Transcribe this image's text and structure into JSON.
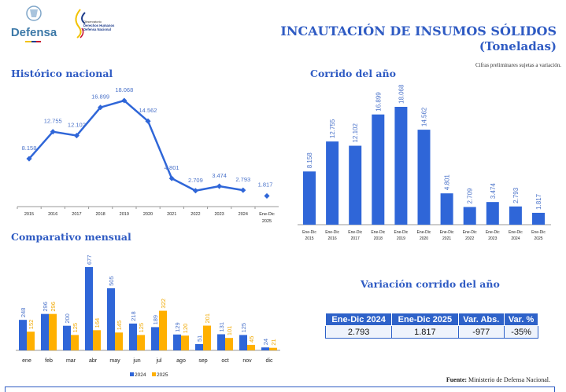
{
  "header": {
    "logo_defensa_text": "Defensa",
    "logo_observatorio_text": [
      "Observatorio",
      "Derechos Humanos",
      "Defensa Nacional"
    ],
    "title": "INCAUTACIÓN DE INSUMOS SÓLIDOS",
    "subtitle": "(Toneladas)",
    "note": "Cifras preliminares sujetas a variación."
  },
  "colors": {
    "title": "#2F5BC3",
    "series_2024": "#2F66D8",
    "series_2025": "#FFB000",
    "label_blue": "#4A72C9"
  },
  "sections": {
    "historico": "Histórico nacional",
    "corrido": "Corrido del año",
    "mensual": "Comparativo mensual",
    "variacion": "Variación corrido del año"
  },
  "chart_data": [
    {
      "type": "line",
      "categories": [
        "2015",
        "2016",
        "2017",
        "2018",
        "2019",
        "2020",
        "2021",
        "2022",
        "2023",
        "2024",
        "Ene-Dic 2025"
      ],
      "values": [
        8158,
        12755,
        12102,
        16899,
        18068,
        14562,
        4801,
        2709,
        3474,
        2793,
        1817
      ],
      "data_labels": [
        "8.158",
        "12.755",
        "12.102",
        "16.899",
        "18.068",
        "14.562",
        "4.801",
        "2.709",
        "3.474",
        "2.793",
        "1.817"
      ],
      "connected_through": "2024",
      "grid": false
    },
    {
      "type": "bar",
      "categories": [
        "Ene-Dic 2015",
        "Ene-Dic 2016",
        "Ene-Dic 2017",
        "Ene-Dic 2018",
        "Ene-Dic 2019",
        "Ene-Dic 2020",
        "Ene-Dic 2021",
        "Ene-Dic 2022",
        "Ene-Dic 2023",
        "Ene-Dic 2024",
        "Ene-Dic 2025"
      ],
      "values": [
        8158,
        12755,
        12102,
        16899,
        18068,
        14562,
        4801,
        2709,
        3474,
        2793,
        1817
      ],
      "data_labels": [
        "8.158",
        "12.755",
        "12.102",
        "16.899",
        "18.068",
        "14.562",
        "4.801",
        "2.709",
        "3.474",
        "2.793",
        "1.817"
      ],
      "grid": false
    },
    {
      "type": "bar",
      "categories": [
        "ene",
        "feb",
        "mar",
        "abr",
        "may",
        "jun",
        "jul",
        "ago",
        "sep",
        "oct",
        "nov",
        "dic"
      ],
      "series": [
        {
          "name": "2024",
          "values": [
            248,
            296,
            200,
            677,
            505,
            218,
            189,
            129,
            51,
            131,
            125,
            24
          ]
        },
        {
          "name": "2025",
          "values": [
            152,
            296,
            125,
            164,
            145,
            125,
            322,
            120,
            201,
            101,
            45,
            21
          ]
        }
      ],
      "legend": "bottom",
      "grid": false
    }
  ],
  "table": {
    "headers": [
      "Ene-Dic 2024",
      "Ene-Dic 2025",
      "Var. Abs.",
      "Var. %"
    ],
    "row": [
      "2.793",
      "1.817",
      "-977",
      "-35%"
    ]
  },
  "footer": {
    "source_label": "Fuente:",
    "source_text": " Ministerio de Defensa Nacional."
  }
}
